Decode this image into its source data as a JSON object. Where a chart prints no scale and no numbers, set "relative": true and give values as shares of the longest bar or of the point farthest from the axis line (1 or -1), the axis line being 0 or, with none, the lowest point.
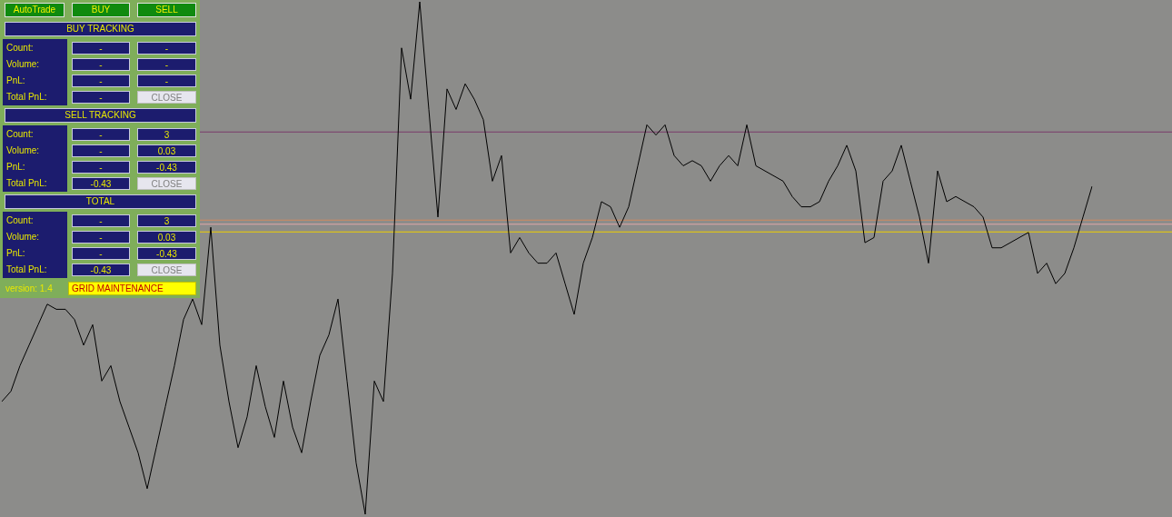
{
  "chart_data": [
    {
      "type": "line",
      "relative": true,
      "marker": "none",
      "line_style": "solid",
      "categories": [
        null,
        null,
        null,
        null,
        null,
        null,
        null,
        null,
        null,
        null,
        null,
        null,
        null,
        null,
        null,
        null,
        null,
        null,
        null,
        null,
        null,
        null,
        null,
        null,
        null,
        null,
        null,
        null,
        null,
        null,
        null,
        null,
        null,
        null,
        null,
        null,
        null,
        null,
        null,
        null,
        null,
        null,
        null,
        null,
        null,
        null,
        null,
        null,
        null,
        null,
        null,
        null,
        null,
        null,
        null,
        null,
        null,
        null,
        null,
        null,
        null,
        null,
        null,
        null,
        null,
        null,
        null,
        null,
        null,
        null,
        null,
        null,
        null,
        null,
        null,
        null,
        null,
        null,
        null,
        null,
        null,
        null,
        null,
        null,
        null,
        null,
        null,
        null,
        null,
        null,
        null,
        null,
        null,
        null,
        null,
        null,
        null,
        null,
        null,
        null,
        null,
        null,
        null,
        null,
        null,
        null,
        null,
        null,
        null,
        null,
        null,
        null,
        null,
        null,
        null,
        null,
        null,
        null,
        null,
        null,
        null
      ],
      "series": [
        {
          "color": "#000000",
          "values": [
            0.22,
            0.24,
            0.29,
            0.33,
            0.37,
            0.41,
            0.4,
            0.4,
            0.38,
            0.33,
            0.37,
            0.26,
            0.29,
            0.22,
            0.17,
            0.12,
            0.05,
            0.13,
            0.21,
            0.29,
            0.38,
            0.42,
            0.37,
            0.56,
            0.33,
            0.22,
            0.13,
            0.19,
            0.29,
            0.21,
            0.15,
            0.26,
            0.17,
            0.12,
            0.22,
            0.31,
            0.35,
            0.42,
            0.26,
            0.1,
            0,
            0.26,
            0.22,
            0.47,
            0.91,
            0.81,
            1,
            0.79,
            0.58,
            0.83,
            0.79,
            0.84,
            0.81,
            0.77,
            0.65,
            0.7,
            0.51,
            0.54,
            0.51,
            0.49,
            0.49,
            0.51,
            0.45,
            0.39,
            0.49,
            0.54,
            0.61,
            0.6,
            0.56,
            0.6,
            0.68,
            0.76,
            0.74,
            0.76,
            0.7,
            0.68,
            0.69,
            0.68,
            0.65,
            0.68,
            0.7,
            0.68,
            0.76,
            0.68,
            0.67,
            0.66,
            0.65,
            0.62,
            0.6,
            0.6,
            0.61,
            0.65,
            0.68,
            0.72,
            0.67,
            0.53,
            0.54,
            0.65,
            0.67,
            0.72,
            0.65,
            0.58,
            0.49,
            0.67,
            0.61,
            0.62,
            0.61,
            0.6,
            0.58,
            0.52,
            0.52,
            0.53,
            0.54,
            0.55,
            0.47,
            0.49,
            0.45,
            0.47,
            0.52,
            0.58,
            0.64
          ]
        }
      ],
      "ref_lines": [
        {
          "axis": "y",
          "value": 0.746,
          "color": "#7a3a6a"
        },
        {
          "axis": "y",
          "value": 0.574,
          "color": "#d08a60"
        },
        {
          "axis": "y",
          "value": 0.566,
          "color": "#e0a8a8"
        },
        {
          "axis": "y",
          "value": 0.551,
          "color": "#f0d000"
        }
      ]
    },
    {
      "type": "other",
      "annotations": [
        "AutoTrade",
        "BUY",
        "SELL",
        "BUY TRACKING",
        "Count:",
        "-",
        "-",
        "Volume:",
        "-",
        "-",
        "PnL:",
        "-",
        "-",
        "Total PnL:",
        "-",
        "CLOSE",
        "SELL TRACKING",
        "Count:",
        "-",
        "3",
        "Volume:",
        "-",
        "0.03",
        "PnL:",
        "-",
        "-0.43",
        "Total PnL:",
        "-0.43",
        "CLOSE",
        "TOTAL",
        "Count:",
        "-",
        "3",
        "Volume:",
        "-",
        "0.03",
        "PnL:",
        "-",
        "-0.43",
        "Total PnL:",
        "-0.43",
        "CLOSE",
        "version: 1.4",
        "GRID MAINTENANCE"
      ]
    }
  ]
}
